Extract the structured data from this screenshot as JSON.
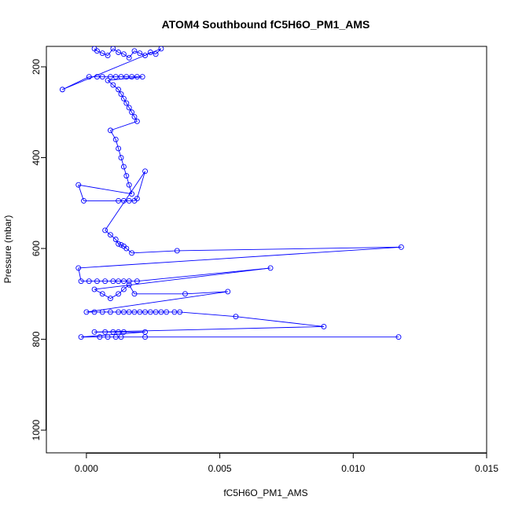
{
  "chart_data": {
    "type": "scatter",
    "title": "ATOM4 Southbound fC5H6O_PM1_AMS",
    "xlabel": "fC5H6O_PM1_AMS",
    "ylabel": "Pressure (mbar)",
    "xlim": [
      -0.0015,
      0.015
    ],
    "ylim": [
      1050,
      155
    ],
    "y_inverted": true,
    "x_ticks": [
      "0.000",
      "0.005",
      "0.010",
      "0.015"
    ],
    "x_tick_values": [
      0.0,
      0.005,
      0.01,
      0.015
    ],
    "y_ticks": [
      "200",
      "400",
      "600",
      "800",
      "1000"
    ],
    "y_tick_values": [
      200,
      400,
      600,
      800,
      1000
    ],
    "grid": false,
    "colors": {
      "series": "#0000ff",
      "axis": "#000000"
    },
    "series": [
      {
        "marker": "open-circle",
        "connected": true,
        "x": [
          0.0003,
          0.0004,
          0.0006,
          0.0008,
          0.001,
          0.0012,
          0.0014,
          0.0016,
          0.0018,
          0.002,
          0.0022,
          0.0024,
          0.0026,
          0.0028,
          -0.0009,
          0.0001,
          0.0004,
          0.0006,
          0.0009,
          0.0011,
          0.0013,
          0.0015,
          0.0017,
          0.0019,
          0.0021,
          0.0008,
          0.001,
          0.0012,
          0.0013,
          0.0014,
          0.0015,
          0.0016,
          0.0017,
          0.0018,
          0.0019,
          0.0009,
          0.0011,
          0.0012,
          0.0013,
          0.0014,
          0.0015,
          0.0016,
          0.0017,
          -0.0003,
          -0.0001,
          0.0012,
          0.0014,
          0.0016,
          0.0018,
          0.0019,
          0.0022,
          0.0007,
          0.0009,
          0.0011,
          0.0012,
          0.0013,
          0.0014,
          0.0015,
          0.0017,
          0.0034,
          0.0118,
          -0.0003,
          -0.0002,
          0.0001,
          0.0004,
          0.0007,
          0.001,
          0.0012,
          0.0014,
          0.0016,
          0.0019,
          0.0069,
          0.0003,
          0.0006,
          0.0009,
          0.0012,
          0.0014,
          0.0016,
          0.0018,
          0.0037,
          0.0053,
          0.0,
          0.0003,
          0.0006,
          0.0009,
          0.0012,
          0.0014,
          0.0016,
          0.0018,
          0.002,
          0.0022,
          0.0024,
          0.0026,
          0.0028,
          0.003,
          0.0033,
          0.0035,
          0.0056,
          0.0089,
          0.0003,
          0.0007,
          0.001,
          0.0012,
          0.0014,
          0.0022,
          -0.0002,
          0.0005,
          0.0008,
          0.0011,
          0.0013,
          0.0022,
          0.0117
        ],
        "y": [
          160,
          165,
          170,
          175,
          160,
          168,
          172,
          180,
          165,
          170,
          175,
          168,
          172,
          160,
          250,
          222,
          222,
          222,
          222,
          222,
          222,
          222,
          222,
          222,
          222,
          230,
          240,
          250,
          260,
          270,
          280,
          290,
          300,
          310,
          320,
          340,
          360,
          380,
          400,
          420,
          440,
          460,
          480,
          460,
          495,
          495,
          495,
          495,
          495,
          490,
          430,
          560,
          570,
          580,
          590,
          592,
          595,
          600,
          610,
          605,
          597,
          643,
          672,
          672,
          672,
          672,
          672,
          672,
          672,
          672,
          672,
          643,
          690,
          700,
          710,
          700,
          690,
          680,
          700,
          700,
          695,
          740,
          740,
          740,
          740,
          740,
          740,
          740,
          740,
          740,
          740,
          740,
          740,
          740,
          740,
          740,
          740,
          750,
          772,
          784,
          784,
          784,
          784,
          784,
          784,
          795,
          795,
          795,
          795,
          795,
          795,
          795
        ]
      }
    ]
  }
}
